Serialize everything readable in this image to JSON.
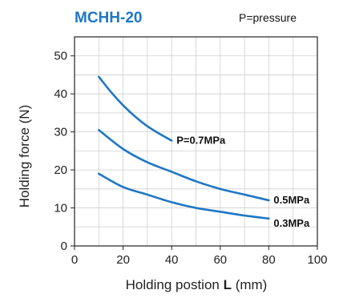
{
  "chart_data": {
    "type": "line",
    "title": "MCHH-20",
    "note": "P=pressure",
    "xlabel_main": "Holding postion ",
    "xlabel_bold": "L",
    "xlabel_unit": " (mm)",
    "ylabel": "Holding force (N)",
    "xlim": [
      0,
      100
    ],
    "ylim": [
      0,
      55
    ],
    "x_ticks": [
      "0",
      "20",
      "40",
      "60",
      "80",
      "100"
    ],
    "y_ticks": [
      "0",
      "10",
      "20",
      "30",
      "40",
      "50"
    ],
    "grid": true,
    "series": [
      {
        "name": "P=0.7MPa",
        "x": [
          10,
          15,
          20,
          25,
          30,
          35,
          40
        ],
        "y": [
          44.5,
          40.5,
          37,
          34,
          31.5,
          29.5,
          27.7
        ],
        "color": "#1f77c4"
      },
      {
        "name": "0.5MPa",
        "x": [
          10,
          20,
          30,
          40,
          50,
          60,
          70,
          80
        ],
        "y": [
          30.5,
          25.5,
          22,
          19.5,
          17,
          15,
          13.5,
          12
        ],
        "color": "#1f77c4"
      },
      {
        "name": "0.3MPa",
        "x": [
          10,
          20,
          30,
          40,
          50,
          60,
          70,
          80
        ],
        "y": [
          19,
          15.5,
          13.5,
          11.5,
          10,
          9,
          8,
          7.2
        ],
        "color": "#1f77c4"
      }
    ]
  }
}
